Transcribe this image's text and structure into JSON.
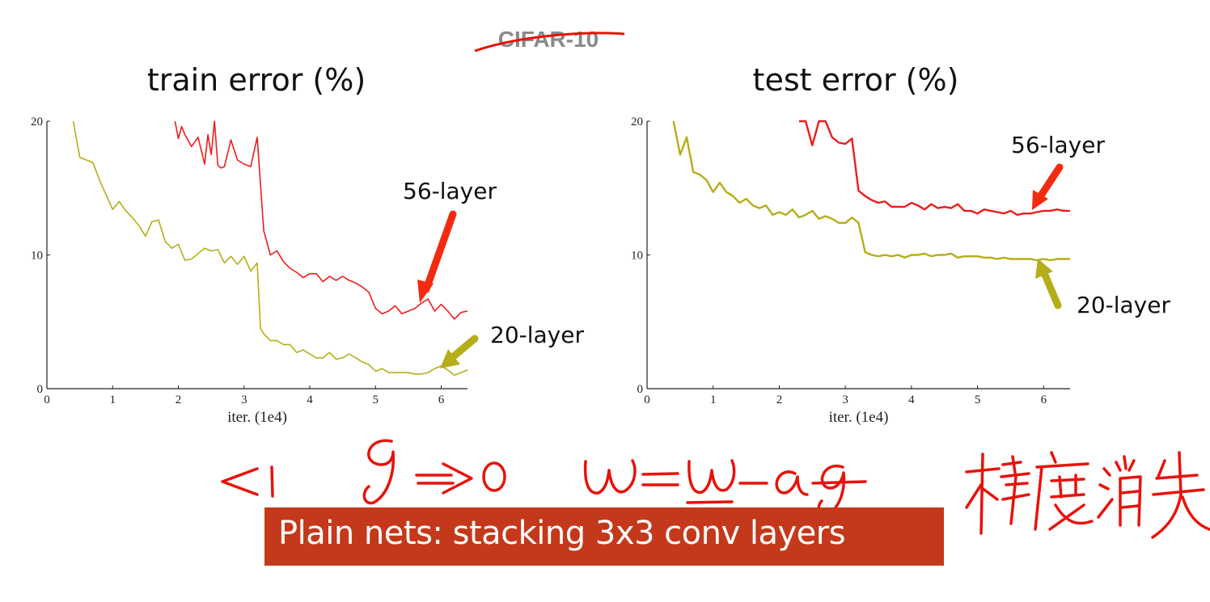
{
  "header_text": "CIFAR-10",
  "banner_text": "Plain nets: stacking 3x3 conv layers",
  "colors": {
    "red": "#ee1c1c",
    "olive": "#b5ae1a",
    "banner": "#c4391b",
    "ink": "#e8120a"
  },
  "chart_data": [
    {
      "type": "line",
      "title": "train error (%)",
      "xlabel": "iter. (1e4)",
      "ylabel": "",
      "xlim": [
        0,
        6.4
      ],
      "ylim": [
        0,
        20
      ],
      "xticks": [
        "0",
        "1",
        "2",
        "3",
        "4",
        "5",
        "6"
      ],
      "yticks": [
        "0",
        "10",
        "20"
      ],
      "series": [
        {
          "name": "56-layer",
          "color": "#ee1c1c",
          "x": [
            1.95,
            2.0,
            2.05,
            2.1,
            2.2,
            2.3,
            2.4,
            2.45,
            2.5,
            2.55,
            2.6,
            2.65,
            2.7,
            2.8,
            2.9,
            3.0,
            3.1,
            3.2,
            3.3,
            3.4,
            3.5,
            3.6,
            3.7,
            3.8,
            3.9,
            4.0,
            4.1,
            4.2,
            4.3,
            4.4,
            4.5,
            4.6,
            4.7,
            4.8,
            4.9,
            5.0,
            5.1,
            5.2,
            5.3,
            5.4,
            5.5,
            5.6,
            5.7,
            5.8,
            5.9,
            6.0,
            6.1,
            6.2,
            6.3,
            6.4
          ],
          "y": [
            20.0,
            18.7,
            19.6,
            19.0,
            18.1,
            18.8,
            16.8,
            19.0,
            17.5,
            20.0,
            16.7,
            16.5,
            16.6,
            18.6,
            17.1,
            16.8,
            16.6,
            18.8,
            11.8,
            10.0,
            10.3,
            9.5,
            9.0,
            8.7,
            8.3,
            8.6,
            8.6,
            8.0,
            8.4,
            8.1,
            8.4,
            8.1,
            7.9,
            7.6,
            7.2,
            6.0,
            5.6,
            5.8,
            6.2,
            5.6,
            5.8,
            6.0,
            6.4,
            6.7,
            5.8,
            6.3,
            5.8,
            5.2,
            5.7,
            5.8
          ]
        },
        {
          "name": "20-layer",
          "color": "#b5ae1a",
          "x": [
            0.4,
            0.5,
            0.6,
            0.7,
            0.8,
            0.9,
            1.0,
            1.1,
            1.2,
            1.3,
            1.4,
            1.5,
            1.6,
            1.7,
            1.8,
            1.9,
            2.0,
            2.1,
            2.2,
            2.3,
            2.4,
            2.5,
            2.6,
            2.7,
            2.8,
            2.9,
            3.0,
            3.1,
            3.2,
            3.25,
            3.3,
            3.4,
            3.5,
            3.6,
            3.7,
            3.8,
            3.9,
            4.0,
            4.1,
            4.2,
            4.3,
            4.4,
            4.5,
            4.6,
            4.7,
            4.8,
            4.9,
            5.0,
            5.1,
            5.2,
            5.3,
            5.4,
            5.5,
            5.6,
            5.7,
            5.8,
            5.9,
            6.0,
            6.1,
            6.2,
            6.3,
            6.4
          ],
          "y": [
            20.0,
            17.3,
            17.1,
            16.9,
            15.6,
            14.5,
            13.4,
            14.0,
            13.3,
            12.8,
            12.2,
            11.4,
            12.5,
            12.6,
            11.0,
            10.5,
            10.8,
            9.6,
            9.7,
            10.1,
            10.5,
            10.3,
            10.4,
            9.4,
            9.9,
            9.3,
            9.9,
            8.8,
            9.4,
            4.5,
            4.1,
            3.6,
            3.6,
            3.3,
            3.3,
            2.7,
            2.9,
            2.6,
            2.3,
            2.3,
            2.7,
            2.2,
            2.3,
            2.6,
            2.3,
            2.0,
            1.8,
            1.3,
            1.5,
            1.2,
            1.2,
            1.2,
            1.2,
            1.1,
            1.1,
            1.2,
            1.5,
            1.7,
            1.4,
            1.0,
            1.2,
            1.4
          ]
        }
      ],
      "annotations": [
        {
          "text": "56-layer",
          "target_series": "56-layer"
        },
        {
          "text": "20-layer",
          "target_series": "20-layer"
        }
      ]
    },
    {
      "type": "line",
      "title": "test error (%)",
      "xlabel": "iter. (1e4)",
      "ylabel": "",
      "xlim": [
        0,
        6.4
      ],
      "ylim": [
        0,
        20
      ],
      "xticks": [
        "0",
        "1",
        "2",
        "3",
        "4",
        "5",
        "6"
      ],
      "yticks": [
        "0",
        "10",
        "20"
      ],
      "series": [
        {
          "name": "56-layer",
          "color": "#ee1c1c",
          "x": [
            2.3,
            2.4,
            2.5,
            2.6,
            2.7,
            2.8,
            2.9,
            3.0,
            3.1,
            3.2,
            3.3,
            3.4,
            3.5,
            3.6,
            3.7,
            3.8,
            3.9,
            4.0,
            4.1,
            4.2,
            4.3,
            4.4,
            4.5,
            4.6,
            4.7,
            4.8,
            4.9,
            5.0,
            5.1,
            5.2,
            5.3,
            5.4,
            5.5,
            5.6,
            5.7,
            5.8,
            5.9,
            6.0,
            6.1,
            6.2,
            6.3,
            6.4
          ],
          "y": [
            20.0,
            20.0,
            18.2,
            20.0,
            20.0,
            18.8,
            18.4,
            18.3,
            18.7,
            14.8,
            14.4,
            14.1,
            13.9,
            14.0,
            13.6,
            13.6,
            13.6,
            13.9,
            13.7,
            13.4,
            13.8,
            13.5,
            13.6,
            13.5,
            13.8,
            13.3,
            13.3,
            13.1,
            13.4,
            13.3,
            13.2,
            13.1,
            13.3,
            13.0,
            13.1,
            13.1,
            13.2,
            13.3,
            13.3,
            13.4,
            13.3,
            13.3
          ]
        },
        {
          "name": "20-layer",
          "color": "#b5ae1a",
          "x": [
            0.4,
            0.5,
            0.6,
            0.7,
            0.8,
            0.9,
            1.0,
            1.1,
            1.2,
            1.3,
            1.4,
            1.5,
            1.6,
            1.7,
            1.8,
            1.9,
            2.0,
            2.1,
            2.2,
            2.3,
            2.4,
            2.5,
            2.6,
            2.7,
            2.8,
            2.9,
            3.0,
            3.1,
            3.2,
            3.3,
            3.4,
            3.5,
            3.6,
            3.7,
            3.8,
            3.9,
            4.0,
            4.1,
            4.2,
            4.3,
            4.4,
            4.5,
            4.6,
            4.7,
            4.8,
            4.9,
            5.0,
            5.1,
            5.2,
            5.3,
            5.4,
            5.5,
            5.6,
            5.7,
            5.8,
            5.9,
            6.0,
            6.1,
            6.2,
            6.3,
            6.4
          ],
          "y": [
            20.0,
            17.5,
            18.8,
            16.2,
            16.0,
            15.6,
            14.7,
            15.4,
            14.7,
            14.4,
            13.9,
            14.2,
            13.7,
            13.5,
            13.7,
            13.0,
            13.2,
            13.0,
            13.4,
            12.8,
            13.0,
            13.3,
            12.7,
            12.9,
            12.7,
            12.4,
            12.4,
            12.8,
            12.4,
            10.2,
            10.0,
            9.9,
            10.0,
            9.9,
            10.0,
            9.8,
            10.0,
            10.0,
            10.1,
            9.9,
            10.0,
            10.0,
            10.1,
            9.8,
            9.9,
            9.9,
            9.9,
            9.8,
            9.8,
            9.7,
            9.8,
            9.7,
            9.7,
            9.7,
            9.7,
            9.6,
            9.7,
            9.6,
            9.7,
            9.7,
            9.7
          ]
        }
      ],
      "annotations": [
        {
          "text": "56-layer",
          "target_series": "56-layer"
        },
        {
          "text": "20-layer",
          "target_series": "20-layer"
        }
      ]
    }
  ]
}
